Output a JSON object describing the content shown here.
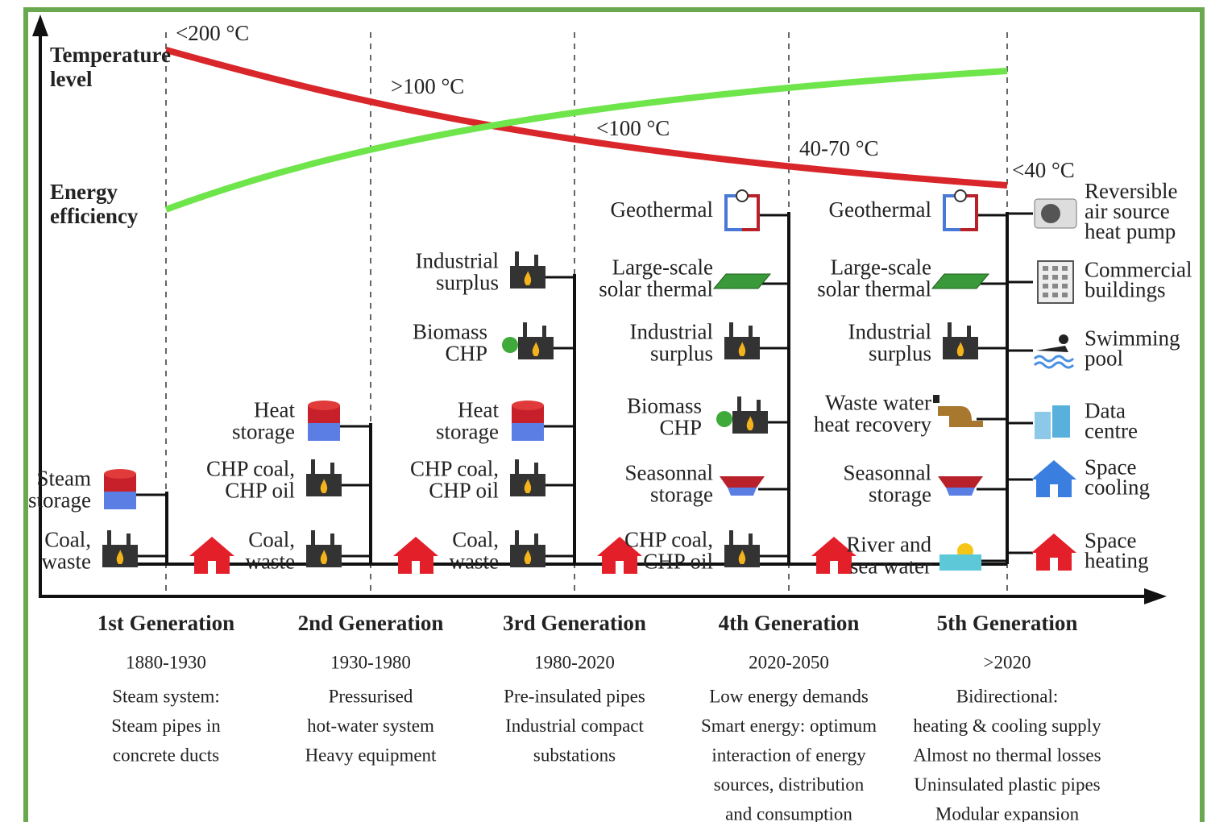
{
  "axis_labels": {
    "temperature": [
      "Temperature",
      "level"
    ],
    "efficiency": [
      "Energy",
      "efficiency"
    ]
  },
  "temperatures": [
    "<200 °C",
    ">100 °C",
    "<100 °C",
    "40-70 °C",
    "<40 °C"
  ],
  "columns": [
    {
      "sources": [
        [
          "Steam",
          "storage"
        ],
        [
          "Coal,",
          "waste"
        ]
      ]
    },
    {
      "sources": [
        [
          "Heat",
          "storage"
        ],
        [
          "CHP coal,",
          "CHP oil"
        ],
        [
          "Coal,",
          "waste"
        ]
      ]
    },
    {
      "sources": [
        [
          "Industrial",
          "surplus"
        ],
        [
          "Biomass",
          "CHP"
        ],
        [
          "Heat",
          "storage"
        ],
        [
          "CHP coal,",
          "CHP oil"
        ],
        [
          "Coal,",
          "waste"
        ]
      ]
    },
    {
      "sources": [
        [
          "Geothermal"
        ],
        [
          "Large-scale",
          "solar thermal"
        ],
        [
          "Industrial",
          "surplus"
        ],
        [
          "Biomass",
          "CHP"
        ],
        [
          "Seasonnal",
          "storage"
        ],
        [
          "CHP coal,",
          "CHP oil"
        ]
      ]
    },
    {
      "sources": [
        [
          "Geothermal"
        ],
        [
          "Large-scale",
          "solar thermal"
        ],
        [
          "Industrial",
          "surplus"
        ],
        [
          "Waste water",
          "heat recovery"
        ],
        [
          "Seasonnal",
          "storage"
        ],
        [
          "River and",
          "sea water"
        ]
      ]
    }
  ],
  "consumers": [
    [
      "Reversible",
      "air source",
      "heat pump"
    ],
    [
      "Commercial",
      "buildings"
    ],
    [
      "Swimming",
      "pool"
    ],
    [
      "Data",
      "centre"
    ],
    [
      "Space",
      "cooling"
    ],
    [
      "Space",
      "heating"
    ]
  ],
  "generations": [
    {
      "name": "1st Generation",
      "years": "1880-1930",
      "description": [
        "Steam system:",
        "Steam pipes in",
        "concrete ducts"
      ]
    },
    {
      "name": "2nd Generation",
      "years": "1930-1980",
      "description": [
        "Pressurised",
        "hot-water system",
        "Heavy equipment"
      ]
    },
    {
      "name": "3rd Generation",
      "years": "1980-2020",
      "description": [
        "Pre-insulated pipes",
        "Industrial compact",
        "substations"
      ]
    },
    {
      "name": "4th Generation",
      "years": "2020-2050",
      "description": [
        "Low energy demands",
        "Smart energy: optimum",
        "interaction of energy",
        "sources, distribution",
        "and consumption"
      ]
    },
    {
      "name": "5th Generation",
      "years": ">2020",
      "description": [
        "Bidirectional:",
        "heating & cooling supply",
        "Almost no thermal losses",
        "Uninsulated plastic pipes",
        "Modular expansion"
      ]
    }
  ]
}
